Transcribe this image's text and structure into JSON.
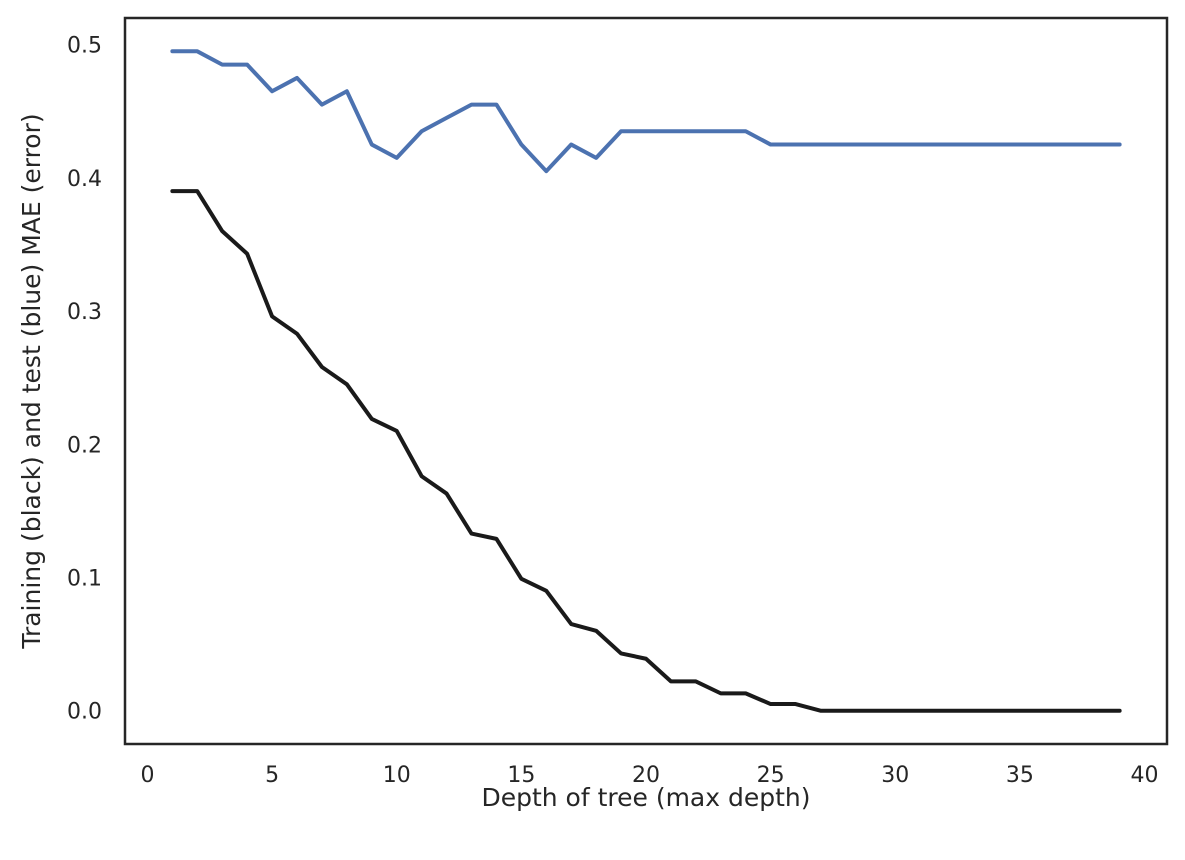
{
  "chart_data": {
    "type": "line",
    "title": "",
    "xlabel": "Depth of tree (max depth)",
    "ylabel": "Training (black) and test (blue) MAE (error)",
    "xlim": [
      -0.9,
      40.9
    ],
    "ylim": [
      -0.025,
      0.52
    ],
    "xticks": [
      0,
      5,
      10,
      15,
      20,
      25,
      30,
      35,
      40
    ],
    "yticks": [
      0.0,
      0.1,
      0.2,
      0.3,
      0.4,
      0.5
    ],
    "xtick_labels": [
      "0",
      "5",
      "10",
      "15",
      "20",
      "25",
      "30",
      "35",
      "40"
    ],
    "ytick_labels": [
      "0.0",
      "0.1",
      "0.2",
      "0.3",
      "0.4",
      "0.5"
    ],
    "grid": false,
    "legend": "none",
    "x": [
      1,
      2,
      3,
      4,
      5,
      6,
      7,
      8,
      9,
      10,
      11,
      12,
      13,
      14,
      15,
      16,
      17,
      18,
      19,
      20,
      21,
      22,
      23,
      24,
      25,
      26,
      27,
      28,
      29,
      30,
      31,
      32,
      33,
      34,
      35,
      36,
      37,
      38,
      39
    ],
    "series": [
      {
        "color": "#4c72b0",
        "values": [
          0.495,
          0.495,
          0.485,
          0.485,
          0.465,
          0.475,
          0.455,
          0.465,
          0.425,
          0.415,
          0.435,
          0.445,
          0.455,
          0.455,
          0.425,
          0.405,
          0.425,
          0.415,
          0.435,
          0.435,
          0.435,
          0.435,
          0.435,
          0.435,
          0.425,
          0.425,
          0.425,
          0.425,
          0.425,
          0.425,
          0.425,
          0.425,
          0.425,
          0.425,
          0.425,
          0.425,
          0.425,
          0.425,
          0.425
        ]
      },
      {
        "color": "#1a1a1a",
        "values": [
          0.39,
          0.39,
          0.36,
          0.343,
          0.296,
          0.283,
          0.258,
          0.245,
          0.219,
          0.21,
          0.176,
          0.163,
          0.133,
          0.129,
          0.099,
          0.09,
          0.065,
          0.06,
          0.043,
          0.039,
          0.022,
          0.022,
          0.013,
          0.013,
          0.005,
          0.005,
          0.0,
          0.0,
          0.0,
          0.0,
          0.0,
          0.0,
          0.0,
          0.0,
          0.0,
          0.0,
          0.0,
          0.0,
          0.0
        ]
      }
    ]
  }
}
